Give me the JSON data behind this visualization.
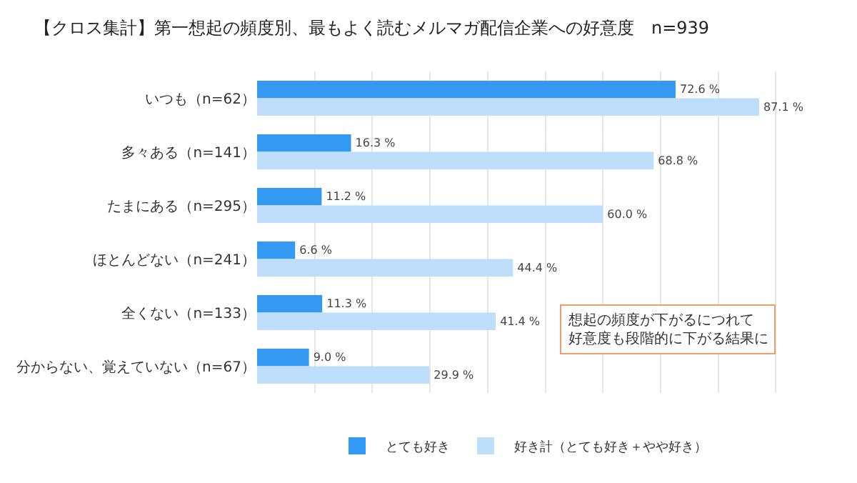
{
  "chart_data": {
    "type": "bar",
    "orientation": "horizontal",
    "title": "【クロス集計】第一想起の頻度別、最もよく読むメルマガ配信企業への好意度　n=939",
    "categories": [
      "いつも（n=62）",
      "多々ある（n=141）",
      "たまにある（n=295）",
      "ほとんどない（n=241）",
      "全くない（n=133）",
      "分からない、覚えていない（n=67）"
    ],
    "series": [
      {
        "name": "とても好き",
        "color": "#3399f3",
        "values": [
          72.6,
          16.3,
          11.2,
          6.6,
          11.3,
          9.0
        ],
        "value_labels": [
          "72.6 %",
          "16.3 %",
          "11.2 %",
          "6.6 %",
          "11.3 %",
          "9.0 %"
        ]
      },
      {
        "name": "好き計（とても好き＋やや好き）",
        "color": "#bfdefb",
        "values": [
          87.1,
          68.8,
          60.0,
          44.4,
          41.4,
          29.9
        ],
        "value_labels": [
          "87.1 %",
          "68.8 %",
          "60.0 %",
          "44.4 %",
          "41.4 %",
          "29.9 %"
        ]
      }
    ],
    "tick_labels": "y",
    "grid": "x",
    "legend": "bottom",
    "annotations": [
      "想起の頻度が下がるにつれて好意度も段階的に下がる結果に"
    ]
  }
}
